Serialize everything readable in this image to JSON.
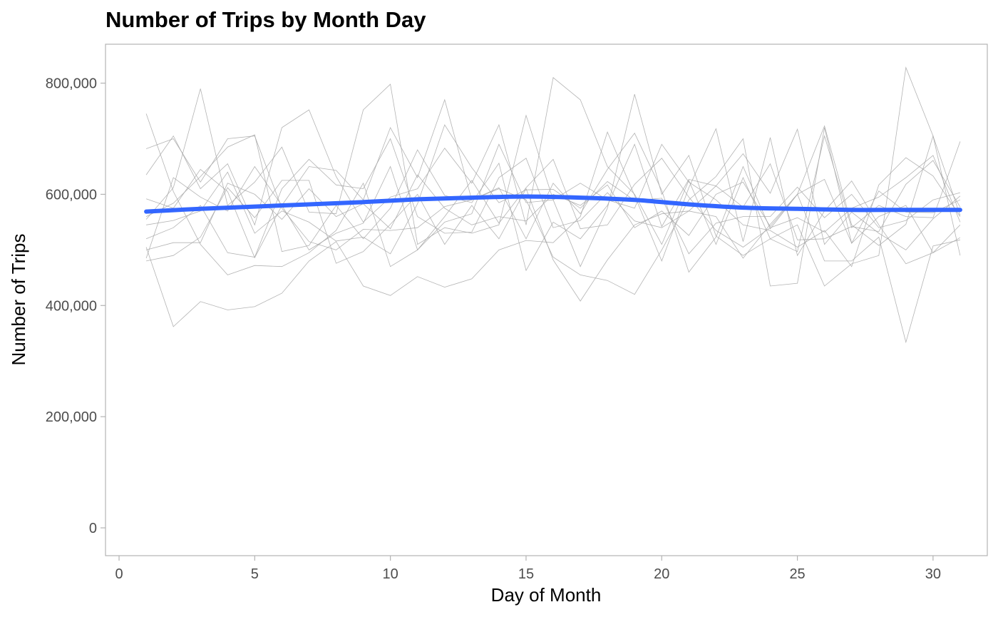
{
  "chart_data": {
    "type": "line",
    "title": "Number of Trips by Month Day",
    "xlabel": "Day of Month",
    "ylabel": "Number of Trips",
    "xlim": [
      -0.5,
      32
    ],
    "ylim": [
      -50000,
      870000
    ],
    "x_ticks": [
      0,
      5,
      10,
      15,
      20,
      25,
      30
    ],
    "x_tick_labels": [
      "0",
      "5",
      "10",
      "15",
      "20",
      "25",
      "30"
    ],
    "y_ticks": [
      0,
      200000,
      400000,
      600000,
      800000
    ],
    "y_tick_labels": [
      "0",
      "200,000",
      "400,000",
      "600,000",
      "800,000"
    ],
    "grid": false,
    "legend": "none",
    "colors": {
      "monthly_lines": "#a6a6a6",
      "smooth": "#3366ff",
      "panel_border": "#b3b3b3"
    },
    "x": [
      1,
      2,
      3,
      4,
      5,
      6,
      7,
      8,
      9,
      10,
      11,
      12,
      13,
      14,
      15,
      16,
      17,
      18,
      19,
      20,
      21,
      22,
      23,
      24,
      25,
      26,
      27,
      28,
      29,
      30,
      31
    ],
    "series": [
      {
        "values": [
          745000,
          605000,
          510000,
          455000,
          472000,
          470000,
          495000,
          535000,
          620000,
          470000,
          500000,
          560000,
          625000,
          548000,
          612000,
          663000,
          538000,
          545000,
          618000,
          665000,
          595000,
          535000,
          505000,
          540000,
          558000,
          532000,
          575000,
          595000,
          630000,
          670000,
          550000
        ]
      },
      {
        "values": [
          682000,
          700000,
          622000,
          700000,
          705000,
          575000,
          515000,
          500000,
          537000,
          535000,
          540000,
          578000,
          590000,
          612000,
          520000,
          620000,
          565000,
          645000,
          710000,
          607000,
          460000,
          523000,
          650000,
          538000,
          600000,
          723000,
          545000,
          508000,
          546000,
          705000,
          490000
        ]
      },
      {
        "values": [
          635000,
          705000,
          610000,
          655000,
          545000,
          720000,
          752000,
          632000,
          550000,
          595000,
          610000,
          683000,
          620000,
          725000,
          545000,
          810000,
          770000,
          650000,
          600000,
          510000,
          625000,
          510000,
          630000,
          520000,
          497000,
          705000,
          540000,
          580000,
          560000,
          558000,
          695000
        ]
      },
      {
        "values": [
          592000,
          575000,
          645000,
          605000,
          486000,
          580000,
          650000,
          643000,
          590000,
          720000,
          630000,
          770000,
          590000,
          610000,
          590000,
          487000,
          455000,
          445000,
          420000,
          500000,
          590000,
          632000,
          700000,
          435000,
          440000,
          720000,
          512000,
          560000,
          580000,
          495000,
          522000
        ]
      },
      {
        "values": [
          555000,
          612000,
          790000,
          580000,
          622000,
          685000,
          568000,
          565000,
          752000,
          798000,
          510000,
          540000,
          530000,
          545000,
          742000,
          590000,
          470000,
          575000,
          780000,
          600000,
          670000,
          525000,
          490000,
          520000,
          545000,
          435000,
          475000,
          490000,
          828000,
          705000,
          562000
        ]
      },
      {
        "values": [
          480000,
          490000,
          523000,
          612000,
          558000,
          625000,
          625000,
          476000,
          497000,
          546000,
          600000,
          510000,
          580000,
          520000,
          610000,
          482000,
          408000,
          482000,
          545000,
          565000,
          570000,
          560000,
          485000,
          546000,
          600000,
          480000,
          480000,
          523000,
          334000,
          507000,
          518000
        ]
      },
      {
        "values": [
          505000,
          362000,
          407000,
          392000,
          398000,
          422000,
          480000,
          515000,
          435000,
          418000,
          452000,
          433000,
          448000,
          500000,
          517000,
          513000,
          560000,
          712000,
          598000,
          480000,
          612000,
          718000,
          515000,
          702000,
          490000,
          570000,
          624000,
          545000,
          475000,
          495000,
          545000
        ]
      },
      {
        "values": [
          545000,
          553000,
          570000,
          640000,
          530000,
          570000,
          550000,
          516000,
          523000,
          493000,
          583000,
          725000,
          648000,
          585000,
          608000,
          609000,
          575000,
          623000,
          589000,
          593000,
          493000,
          548000,
          560000,
          560000,
          613000,
          558000,
          600000,
          540000,
          553000,
          590000,
          603000
        ]
      },
      {
        "values": [
          560000,
          584000,
          632000,
          685000,
          707000,
          497000,
          508000,
          580000,
          520000,
          575000,
          680000,
          598000,
          585000,
          656000,
          463000,
          550000,
          520000,
          580000,
          690000,
          542000,
          627000,
          615000,
          673000,
          602000,
          717000,
          510000,
          568000,
          530000,
          500000,
          556000,
          597000
        ]
      },
      {
        "values": [
          520000,
          540000,
          580000,
          495000,
          487000,
          610000,
          663000,
          617000,
          610000,
          700000,
          560000,
          530000,
          532000,
          630000,
          665000,
          540000,
          553000,
          603000,
          552000,
          540000,
          570000,
          615000,
          577000,
          655000,
          518000,
          520000,
          542000,
          533000,
          618000,
          661000,
          577000
        ]
      },
      {
        "values": [
          485000,
          630000,
          595000,
          570000,
          650000,
          580000,
          500000,
          530000,
          548000,
          650000,
          500000,
          550000,
          565000,
          690000,
          585000,
          590000,
          620000,
          590000,
          575000,
          690000,
          622000,
          590000,
          545000,
          535000,
          505000,
          535000,
          470000,
          617000,
          666000,
          633000,
          560000
        ]
      },
      {
        "values": [
          500000,
          513000,
          513000,
          620000,
          600000,
          555000,
          610000,
          560000,
          583000,
          538000,
          635000,
          575000,
          545000,
          560000,
          552000,
          600000,
          580000,
          617000,
          540000,
          570000,
          526000,
          600000,
          622000,
          542000,
          600000,
          627000,
          512000,
          606000,
          568000,
          567000,
          590000
        ]
      }
    ],
    "smooth_line": {
      "name": "smooth",
      "x": [
        1,
        3,
        5,
        7,
        9,
        11,
        13,
        15,
        17,
        19,
        21,
        23,
        25,
        27,
        29,
        31
      ],
      "values": [
        569000,
        574000,
        578000,
        582000,
        586000,
        591000,
        594000,
        596000,
        594000,
        590000,
        582000,
        576000,
        574000,
        572000,
        572000,
        572000
      ]
    }
  }
}
